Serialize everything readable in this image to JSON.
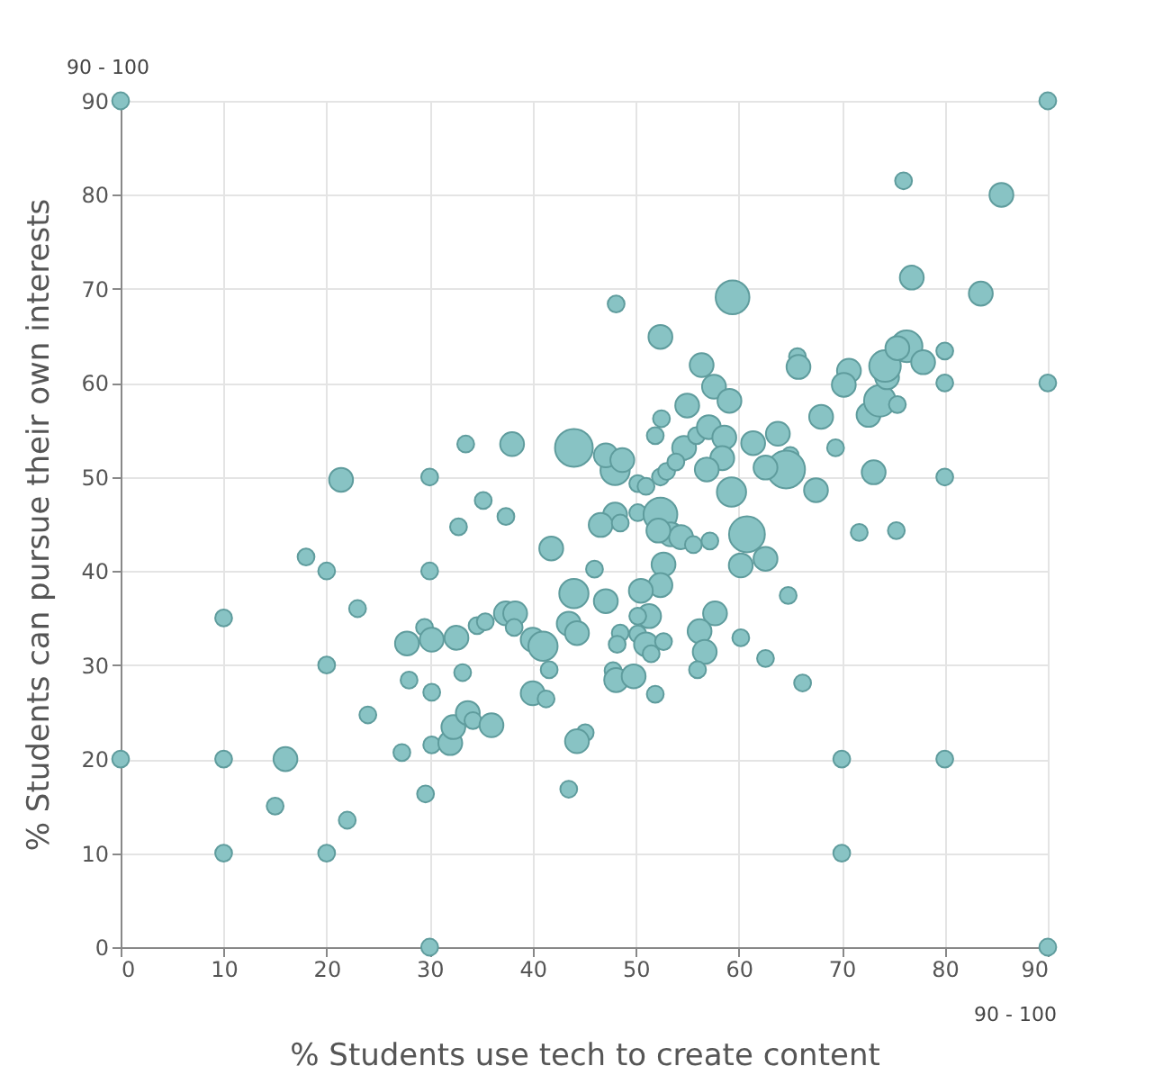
{
  "chart_data": {
    "type": "bubble",
    "xlabel": "% Students use tech to create content",
    "ylabel": "% Students can pursue their own interests",
    "annotations": [
      "90 - 100",
      "90 - 100"
    ],
    "xlim": [
      0,
      90
    ],
    "xticks": [
      0,
      10,
      20,
      30,
      40,
      50,
      60,
      70,
      80,
      90
    ],
    "ylim": [
      0,
      90
    ],
    "yticks": [
      0,
      10,
      20,
      30,
      40,
      50,
      60,
      70,
      80,
      90
    ],
    "grid": true,
    "series": [
      {
        "color": "#88c3c4",
        "x": [
          0,
          90,
          90,
          90,
          0,
          10,
          10,
          10,
          20,
          20,
          20,
          30,
          30,
          30,
          70,
          70,
          80,
          80,
          80,
          80,
          76,
          85.5,
          83.5,
          76.8,
          15,
          16,
          18,
          21.4,
          22,
          23,
          24,
          27.3,
          27.8,
          28,
          29.5,
          29.6,
          30.2,
          30.2,
          30.2,
          32,
          32.3,
          33.7,
          34.2,
          36,
          33.2,
          32.6,
          34.6,
          35.4,
          37.4,
          38.3,
          38.2,
          40,
          41,
          41.6,
          40,
          41.3,
          43.5,
          44,
          43.5,
          44.3,
          45.1,
          44.3,
          46,
          41.8,
          37.4,
          35.2,
          32.8,
          33.5,
          38,
          44,
          48.1,
          59.4,
          52.4,
          56.4,
          57.6,
          59.1,
          55,
          52.5,
          51.9,
          54.7,
          55.9,
          57.1,
          58.6,
          58.4,
          56.9,
          61.4,
          63.8,
          65,
          64.6,
          62.6,
          65.7,
          65.8,
          68,
          69.4,
          67.5,
          70.7,
          70.2,
          73.1,
          72.6,
          73.7,
          74.4,
          74.2,
          75.4,
          76.3,
          75.4,
          77.9,
          50.2,
          52.4,
          48,
          59.3,
          50.2,
          51,
          52.4,
          53,
          53.9,
          48,
          47.1,
          48.7,
          46.6,
          48.5,
          53.4,
          54.4,
          55.6,
          57.2,
          60.8,
          60.2,
          62.6,
          71.7,
          75.3,
          52.7,
          52.4,
          50.5,
          47.1,
          64.8,
          57.7,
          56.2,
          56.7,
          56,
          60.2,
          62.6,
          66.2,
          51.3,
          50.2,
          48.5,
          50.2,
          51,
          52.7,
          51.5,
          48.2,
          47.8,
          48.1,
          49.8,
          51.9,
          52.2
        ],
        "values": [
          90,
          90,
          60,
          0,
          20,
          35,
          20,
          10,
          40,
          30,
          10,
          50,
          40,
          0,
          20,
          10,
          20,
          50,
          60,
          63.4,
          81.5,
          80,
          69.5,
          71.2,
          15,
          20,
          41.5,
          49.7,
          13.5,
          36,
          24.7,
          20.7,
          32.3,
          28.4,
          34,
          16.3,
          21.5,
          27.1,
          32.7,
          21.7,
          23.4,
          24.9,
          24.1,
          23.6,
          29.2,
          32.9,
          34.2,
          34.6,
          35.5,
          35.5,
          34,
          32.7,
          32,
          29.5,
          27,
          26.4,
          16.8,
          37.6,
          34.4,
          33.4,
          22.8,
          21.9,
          40.2,
          42.4,
          45.8,
          47.5,
          44.7,
          53.5,
          53.5,
          53.1,
          68.4,
          69.1,
          64.9,
          61.9,
          59.6,
          58.1,
          57.6,
          56.2,
          54.4,
          53.1,
          54.4,
          55.3,
          54.2,
          52,
          50.8,
          53.6,
          54.6,
          52.3,
          50.8,
          51,
          62.8,
          61.7,
          56.4,
          53.1,
          48.6,
          61.3,
          59.8,
          50.5,
          56.6,
          58.1,
          60.6,
          61.8,
          57.7,
          63.9,
          63.7,
          62.2,
          46.2,
          46,
          46,
          48.4,
          49.3,
          49,
          50,
          50.6,
          51.6,
          50.7,
          52.3,
          51.8,
          44.9,
          45.1,
          43.9,
          43.6,
          42.8,
          43.2,
          43.9,
          40.6,
          41.3,
          44.1,
          44.3,
          40.7,
          38.5,
          37.9,
          36.8,
          37.4,
          35.5,
          33.6,
          31.4,
          29.5,
          32.9,
          30.7,
          28.1,
          35.2,
          35.2,
          33.4,
          33.3,
          32.2,
          32.5,
          31.2,
          32.2,
          29.4,
          28.4,
          28.8,
          26.9,
          44.3
        ],
        "sizes": [
          0.2,
          0.2,
          0.2,
          0.2,
          0.2,
          0.2,
          0.2,
          0.2,
          0.2,
          0.2,
          0.2,
          0.2,
          0.2,
          0.2,
          0.2,
          0.2,
          0.2,
          0.2,
          0.2,
          0.2,
          0.2,
          0.4,
          0.4,
          0.4,
          0.2,
          0.4,
          0.2,
          0.4,
          0.2,
          0.2,
          0.2,
          0.2,
          0.4,
          0.2,
          0.2,
          0.2,
          0.2,
          0.2,
          0.4,
          0.4,
          0.4,
          0.4,
          0.2,
          0.4,
          0.2,
          0.4,
          0.2,
          0.2,
          0.4,
          0.4,
          0.2,
          0.4,
          0.6,
          0.2,
          0.4,
          0.2,
          0.2,
          0.6,
          0.4,
          0.4,
          0.2,
          0.4,
          0.2,
          0.4,
          0.2,
          0.2,
          0.2,
          0.2,
          0.4,
          1,
          0.2,
          0.8,
          0.4,
          0.4,
          0.4,
          0.4,
          0.4,
          0.2,
          0.2,
          0.4,
          0.2,
          0.4,
          0.4,
          0.4,
          0.4,
          0.4,
          0.4,
          0.2,
          1,
          0.4,
          0.2,
          0.4,
          0.4,
          0.2,
          0.4,
          0.4,
          0.4,
          0.4,
          0.4,
          0.7,
          0.4,
          0.7,
          0.2,
          0.7,
          0.4,
          0.4,
          0.2,
          0.8,
          0.4,
          0.6,
          0.2,
          0.2,
          0.2,
          0.2,
          0.2,
          0.6,
          0.4,
          0.4,
          0.4,
          0.2,
          0.4,
          0.4,
          0.2,
          0.2,
          0.9,
          0.4,
          0.4,
          0.2,
          0.2,
          0.4,
          0.4,
          0.4,
          0.4,
          0.2,
          0.4,
          0.4,
          0.4,
          0.2,
          0.2,
          0.2,
          0.2,
          0.4,
          0.2,
          0.2,
          0.2,
          0.4,
          0.2,
          0.2,
          0.2,
          0.2,
          0.4,
          0.4,
          0.2,
          0.4
        ]
      }
    ]
  }
}
